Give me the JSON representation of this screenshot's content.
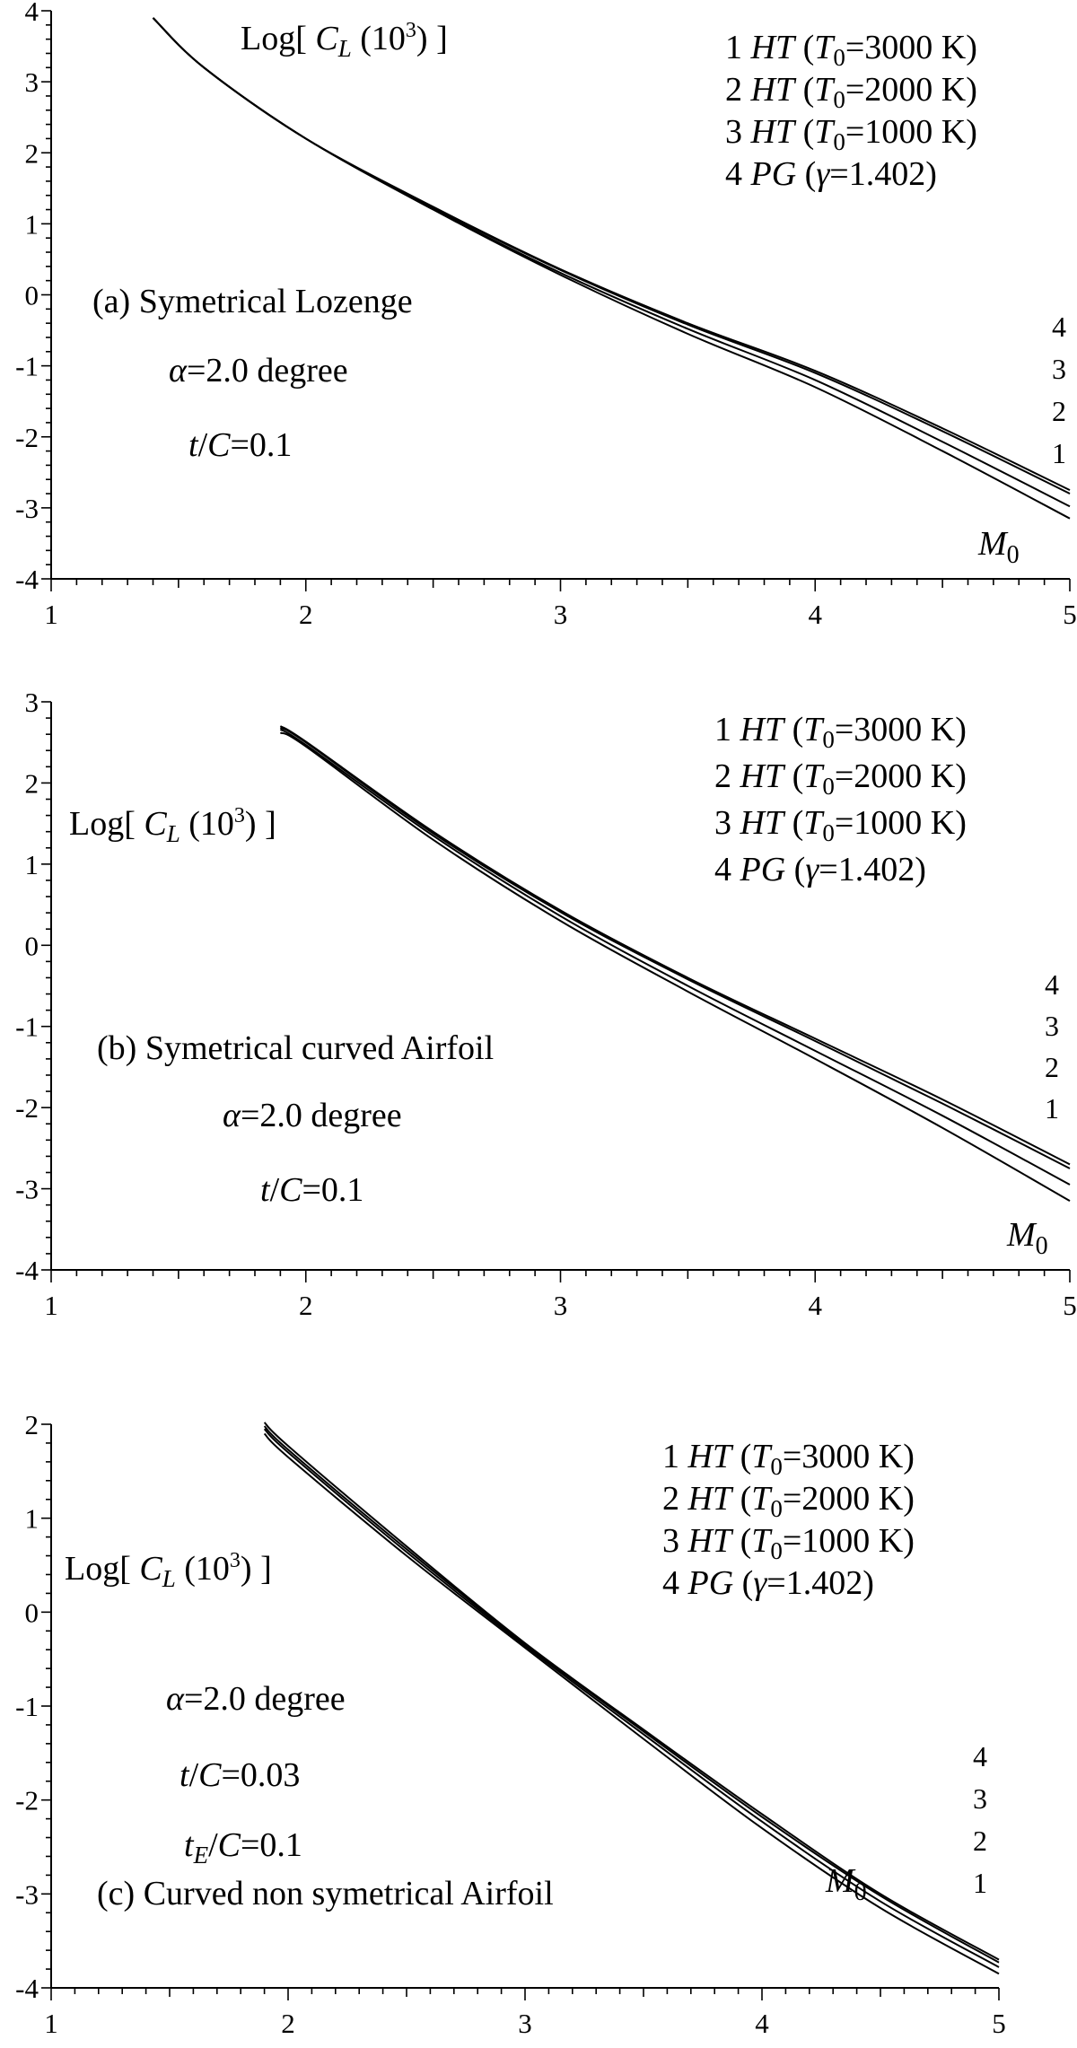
{
  "chart_data": [
    {
      "type": "line",
      "panel_label": "(a)",
      "title": "Symetrical Lozenge",
      "ylabel": {
        "prefix": "Log[",
        "var": "C",
        "sub": "L",
        "scale": "(10",
        "sup": "3",
        "close": ") ]"
      },
      "xlabel": {
        "var": "M",
        "sub": "0"
      },
      "params": [
        {
          "var": "α",
          "text": "=2.0 degree"
        },
        {
          "var": "t",
          "subvar": "",
          "mid": "/",
          "var2": "C",
          "text": "=0.1"
        }
      ],
      "xlim": [
        1,
        5
      ],
      "ylim": [
        -4,
        4
      ],
      "xticks": [
        "1",
        "2",
        "3",
        "4",
        "5"
      ],
      "yticks": [
        "4",
        "3",
        "2",
        "1",
        "0",
        "-1",
        "-2",
        "-3",
        "-4"
      ],
      "legend": [
        {
          "num": "1",
          "model": "HT",
          "param": "T",
          "sub": "0",
          "value": "=3000 K)"
        },
        {
          "num": "2",
          "model": "HT",
          "param": "T",
          "sub": "0",
          "value": "=2000 K)"
        },
        {
          "num": "3",
          "model": "HT",
          "param": "T",
          "sub": "0",
          "value": "=1000 K)"
        },
        {
          "num": "4",
          "model": "PG",
          "param": "γ",
          "sub": "",
          "value": "=1.402)"
        }
      ],
      "curve_labels": [
        "4",
        "3",
        "2",
        "1"
      ],
      "series": [
        {
          "name": "1",
          "x": [
            1.4,
            1.6,
            2.0,
            2.5,
            3.0,
            3.5,
            4.0,
            4.5,
            5.0
          ],
          "y": [
            3.9,
            3.2,
            2.2,
            1.2,
            0.28,
            -0.55,
            -1.3,
            -2.2,
            -3.15
          ]
        },
        {
          "name": "2",
          "x": [
            1.4,
            1.6,
            2.0,
            2.5,
            3.0,
            3.5,
            4.0,
            4.5,
            5.0
          ],
          "y": [
            3.9,
            3.2,
            2.2,
            1.21,
            0.31,
            -0.48,
            -1.2,
            -2.07,
            -2.98
          ]
        },
        {
          "name": "3",
          "x": [
            1.4,
            1.6,
            2.0,
            2.5,
            3.0,
            3.5,
            4.0,
            4.5,
            5.0
          ],
          "y": [
            3.9,
            3.2,
            2.2,
            1.23,
            0.35,
            -0.42,
            -1.1,
            -1.92,
            -2.8
          ]
        },
        {
          "name": "4",
          "x": [
            1.4,
            1.6,
            2.0,
            2.5,
            3.0,
            3.5,
            4.0,
            4.5,
            5.0
          ],
          "y": [
            3.9,
            3.2,
            2.2,
            1.24,
            0.36,
            -0.4,
            -1.07,
            -1.88,
            -2.75
          ]
        }
      ]
    },
    {
      "type": "line",
      "panel_label": "(b)",
      "title": "Symetrical curved Airfoil",
      "ylabel": {
        "prefix": "Log[",
        "var": "C",
        "sub": "L",
        "scale": "(10",
        "sup": "3",
        "close": ") ]"
      },
      "xlabel": {
        "var": "M",
        "sub": "0"
      },
      "params": [
        {
          "var": "α",
          "text": "=2.0 degree"
        },
        {
          "var": "t",
          "subvar": "",
          "mid": "/",
          "var2": "C",
          "text": "=0.1"
        }
      ],
      "xlim": [
        1,
        5
      ],
      "ylim": [
        -4,
        3
      ],
      "xticks": [
        "1",
        "2",
        "3",
        "4",
        "5"
      ],
      "yticks": [
        "3",
        "2",
        "1",
        "0",
        "-1",
        "-2",
        "-3",
        "-4"
      ],
      "legend": [
        {
          "num": "1",
          "model": "HT",
          "param": "T",
          "sub": "0",
          "value": "=3000 K)"
        },
        {
          "num": "2",
          "model": "HT",
          "param": "T",
          "sub": "0",
          "value": "=2000 K)"
        },
        {
          "num": "3",
          "model": "HT",
          "param": "T",
          "sub": "0",
          "value": "=1000 K)"
        },
        {
          "num": "4",
          "model": "PG",
          "param": "γ",
          "sub": "",
          "value": "=1.402)"
        }
      ],
      "curve_labels": [
        "4",
        "3",
        "2",
        "1"
      ],
      "series": [
        {
          "name": "1",
          "x": [
            1.9,
            2.0,
            2.5,
            3.0,
            3.5,
            4.0,
            4.5,
            5.0
          ],
          "y": [
            2.62,
            2.45,
            1.3,
            0.3,
            -0.57,
            -1.4,
            -2.25,
            -3.15
          ]
        },
        {
          "name": "2",
          "x": [
            1.9,
            2.0,
            2.5,
            3.0,
            3.5,
            4.0,
            4.5,
            5.0
          ],
          "y": [
            2.66,
            2.47,
            1.35,
            0.36,
            -0.5,
            -1.3,
            -2.1,
            -2.95
          ]
        },
        {
          "name": "3",
          "x": [
            1.9,
            2.0,
            2.5,
            3.0,
            3.5,
            4.0,
            4.5,
            5.0
          ],
          "y": [
            2.68,
            2.5,
            1.38,
            0.41,
            -0.42,
            -1.18,
            -1.95,
            -2.75
          ]
        },
        {
          "name": "4",
          "x": [
            1.9,
            2.0,
            2.5,
            3.0,
            3.5,
            4.0,
            4.5,
            5.0
          ],
          "y": [
            2.7,
            2.51,
            1.4,
            0.43,
            -0.4,
            -1.15,
            -1.9,
            -2.7
          ]
        }
      ]
    },
    {
      "type": "line",
      "panel_label": "(c)",
      "title": "Curved non symetrical Airfoil",
      "ylabel": {
        "prefix": "Log[",
        "var": "C",
        "sub": "L",
        "scale": "(10",
        "sup": "3",
        "close": ") ]"
      },
      "xlabel": {
        "var": "M",
        "sub": "0"
      },
      "params": [
        {
          "var": "α",
          "text": "=2.0 degree"
        },
        {
          "var": "t",
          "subvar": "",
          "mid": "/",
          "var2": "C",
          "text": "=0.03"
        },
        {
          "var": "t",
          "subvar": "E",
          "mid": "/",
          "var2": "C",
          "text": "=0.1"
        }
      ],
      "xlim": [
        1,
        5
      ],
      "ylim": [
        -4,
        2
      ],
      "xticks": [
        "1",
        "2",
        "3",
        "4",
        "5"
      ],
      "yticks": [
        "2",
        "1",
        "0",
        "-1",
        "-2",
        "-3",
        "-4"
      ],
      "legend": [
        {
          "num": "1",
          "model": "HT",
          "param": "T",
          "sub": "0",
          "value": "=3000 K)"
        },
        {
          "num": "2",
          "model": "HT",
          "param": "T",
          "sub": "0",
          "value": "=2000 K)"
        },
        {
          "num": "3",
          "model": "HT",
          "param": "T",
          "sub": "0",
          "value": "=1000 K)"
        },
        {
          "num": "4",
          "model": "PG",
          "param": "γ",
          "sub": "",
          "value": "=1.402)"
        }
      ],
      "curve_labels": [
        "4",
        "3",
        "2",
        "1"
      ],
      "series": [
        {
          "name": "1",
          "x": [
            1.9,
            2.0,
            2.5,
            3.0,
            3.5,
            4.0,
            4.5,
            5.0
          ],
          "y": [
            1.9,
            1.65,
            0.6,
            -0.38,
            -1.35,
            -2.3,
            -3.15,
            -3.85
          ]
        },
        {
          "name": "2",
          "x": [
            1.9,
            2.0,
            2.5,
            3.0,
            3.5,
            4.0,
            4.5,
            5.0
          ],
          "y": [
            1.95,
            1.7,
            0.64,
            -0.36,
            -1.3,
            -2.23,
            -3.08,
            -3.78
          ]
        },
        {
          "name": "3",
          "x": [
            1.9,
            2.0,
            2.5,
            3.0,
            3.5,
            4.0,
            4.5,
            5.0
          ],
          "y": [
            1.98,
            1.73,
            0.67,
            -0.34,
            -1.27,
            -2.18,
            -3.02,
            -3.73
          ]
        },
        {
          "name": "4",
          "x": [
            1.9,
            2.0,
            2.5,
            3.0,
            3.5,
            4.0,
            4.5,
            5.0
          ],
          "y": [
            2.02,
            1.77,
            0.7,
            -0.33,
            -1.25,
            -2.15,
            -3.0,
            -3.7
          ]
        }
      ]
    }
  ]
}
